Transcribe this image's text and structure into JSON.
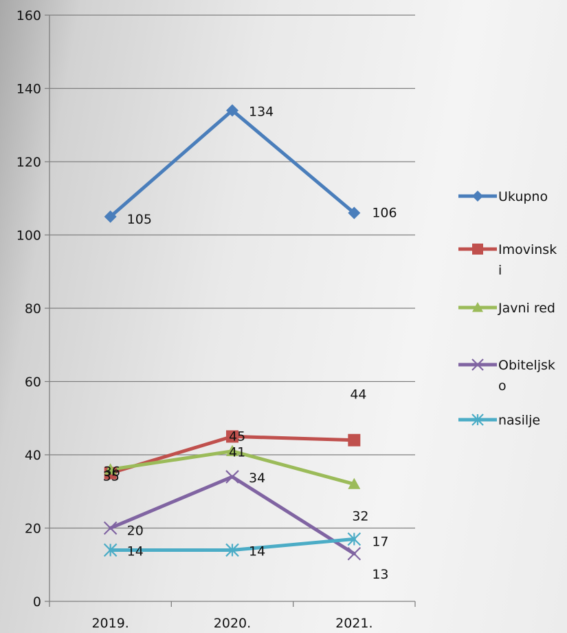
{
  "chart_data": {
    "type": "line",
    "categories": [
      "2019.",
      "2020.",
      "2021."
    ],
    "ylim": [
      0,
      160
    ],
    "yticks": [
      0,
      20,
      40,
      60,
      80,
      100,
      120,
      140,
      160
    ],
    "grid": true,
    "legend_position": "right",
    "series": [
      {
        "name": "Ukupno",
        "legend_lines": [
          "Ukupno"
        ],
        "values": [
          105,
          134,
          106
        ],
        "labels": [
          "105",
          "134",
          "106"
        ],
        "color": "#4a7ebb",
        "marker": "diamond"
      },
      {
        "name": "Imovinski",
        "legend_lines": [
          "Imovinsk",
          "i"
        ],
        "values": [
          35,
          45,
          44
        ],
        "labels": [
          "35",
          "45",
          "44"
        ],
        "color": "#c0504d",
        "marker": "square"
      },
      {
        "name": "Javni red",
        "legend_lines": [
          "Javni red"
        ],
        "values": [
          36,
          41,
          32
        ],
        "labels": [
          "36",
          "41",
          "32"
        ],
        "color": "#9bbb59",
        "marker": "triangle"
      },
      {
        "name": "Obiteljsko",
        "legend_lines": [
          "Obiteljsk",
          "o"
        ],
        "values": [
          20,
          34,
          13
        ],
        "labels": [
          "20",
          "34",
          "13"
        ],
        "color": "#8064a2",
        "marker": "x"
      },
      {
        "name": "nasilje",
        "legend_lines": [
          "nasilje"
        ],
        "values": [
          14,
          14,
          17
        ],
        "labels": [
          "14",
          "14",
          "17"
        ],
        "color": "#4bacc6",
        "marker": "star"
      }
    ]
  }
}
